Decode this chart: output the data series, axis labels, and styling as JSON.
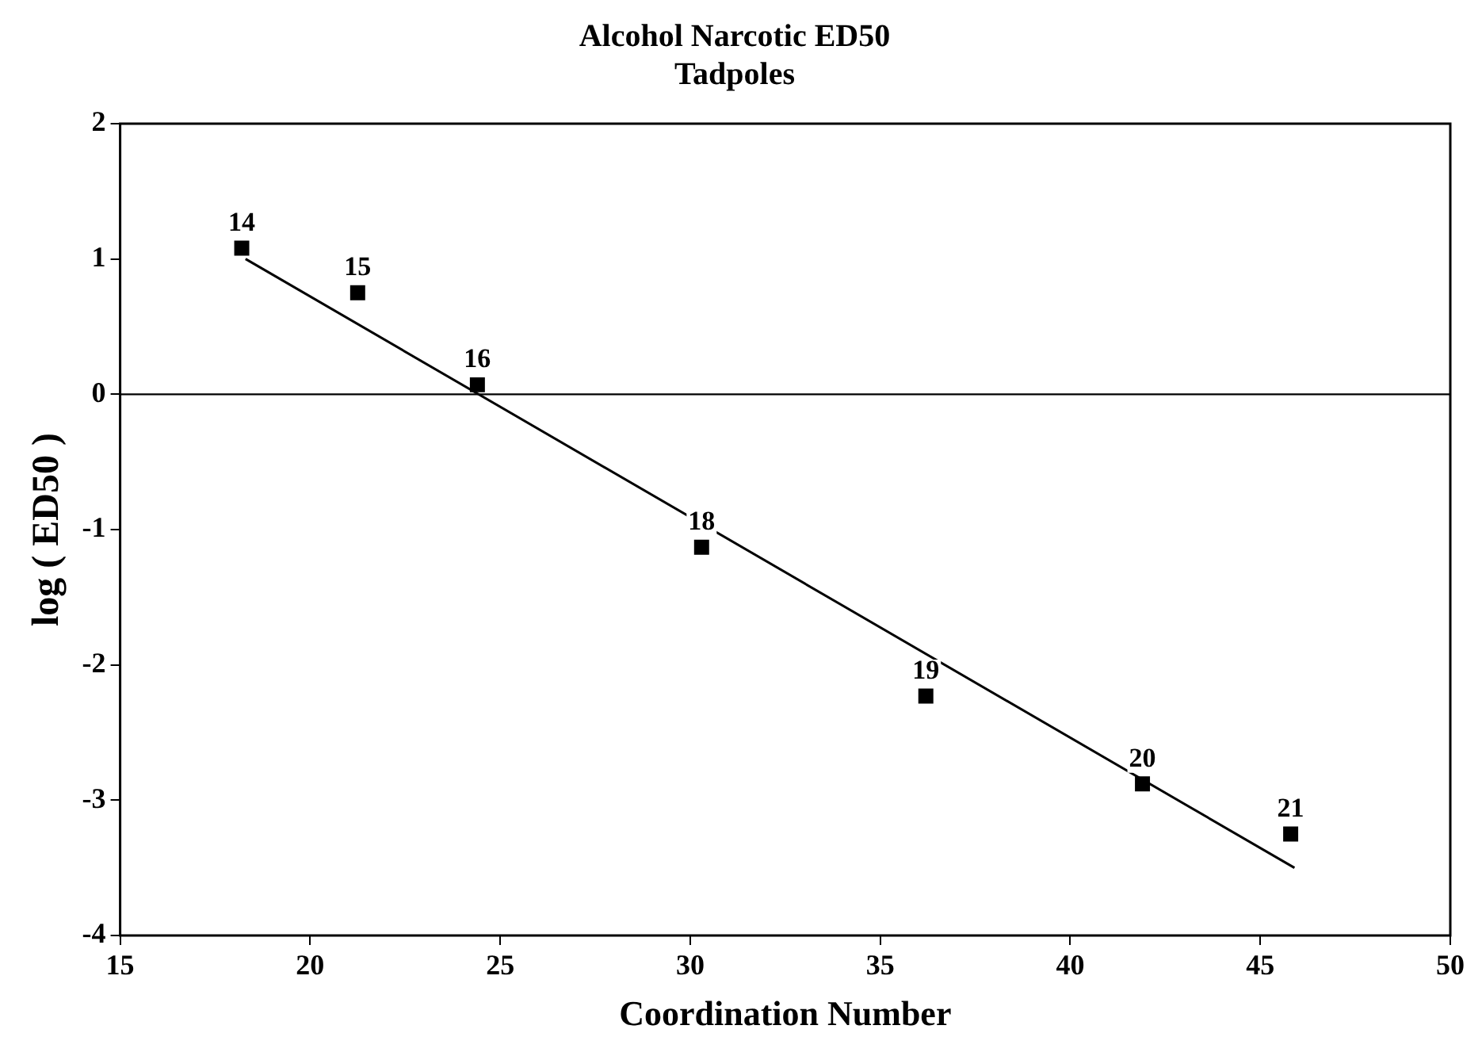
{
  "chart_data": {
    "type": "scatter",
    "title": "Alcohol Narcotic ED50",
    "subtitle": "Tadpoles",
    "xlabel": "Coordination Number",
    "ylabel": "log ( ED50 )",
    "xlim": [
      15,
      50
    ],
    "xticks": [
      15,
      20,
      25,
      30,
      35,
      40,
      45,
      50
    ],
    "ylim": [
      -4,
      2
    ],
    "yticks": [
      -4,
      -3,
      -2,
      -1,
      0,
      1,
      2
    ],
    "grid": false,
    "legend": false,
    "marker": "square",
    "series": [
      {
        "color": "#000000",
        "x": [
          18.2,
          21.25,
          24.4,
          30.3,
          36.2,
          41.9,
          45.8
        ],
        "values": [
          1.08,
          0.75,
          0.07,
          -1.13,
          -2.23,
          -2.88,
          -3.25
        ]
      },
      {
        "type": "line",
        "color": "#000000",
        "x": [
          18.3,
          45.9
        ],
        "values": [
          1.0,
          -3.5
        ],
        "marker": "none"
      }
    ],
    "annotations": [
      {
        "text": "14",
        "x": 18.2,
        "y": 1.08
      },
      {
        "text": "15",
        "x": 21.25,
        "y": 0.75
      },
      {
        "text": "16",
        "x": 24.4,
        "y": 0.07
      },
      {
        "text": "18",
        "x": 30.3,
        "y": -1.13
      },
      {
        "text": "19",
        "x": 36.2,
        "y": -2.23
      },
      {
        "text": "20",
        "x": 41.9,
        "y": -2.88
      },
      {
        "text": "21",
        "x": 45.8,
        "y": -3.25
      }
    ],
    "ref_lines": [
      {
        "axis": "y",
        "value": 0,
        "color": "#000000"
      }
    ]
  }
}
